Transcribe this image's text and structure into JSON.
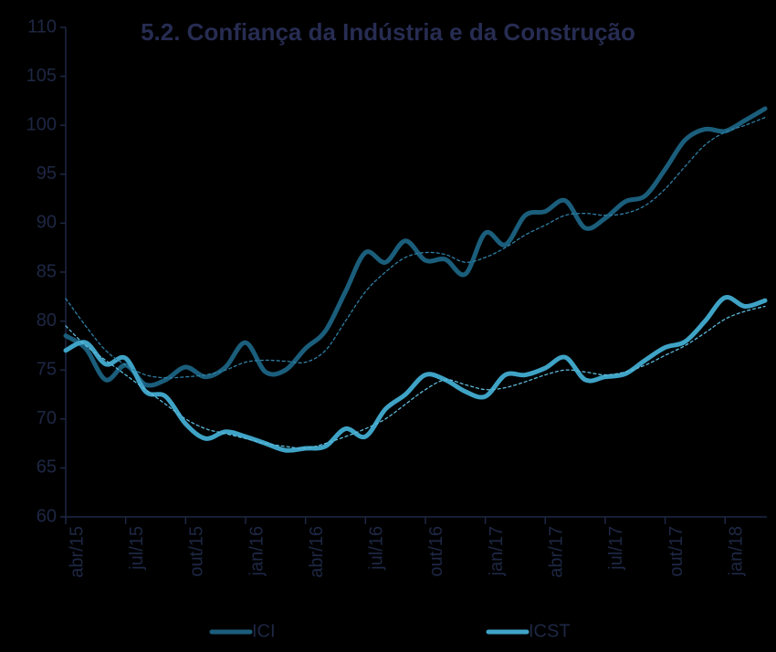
{
  "chart_data": {
    "type": "line",
    "title": "5.2. Confiança da Indústria e da Construção",
    "categories": [
      "abr/15",
      null,
      null,
      "jul/15",
      null,
      null,
      "out/15",
      null,
      null,
      "jan/16",
      null,
      null,
      "abr/16",
      null,
      null,
      "jul/16",
      null,
      null,
      "out/16",
      null,
      null,
      "jan/17",
      null,
      null,
      "abr/17",
      null,
      null,
      "jul/17",
      null,
      null,
      "out/17",
      null,
      null,
      "jan/18",
      null,
      null
    ],
    "series": [
      {
        "name": "ICI",
        "color": "#1b5e7c",
        "values": [
          78.5,
          77.2,
          74.0,
          75.5,
          73.5,
          74.0,
          75.3,
          74.3,
          75.3,
          77.8,
          74.8,
          75.0,
          77.2,
          79.0,
          83.0,
          87.0,
          86.0,
          88.2,
          86.2,
          86.3,
          84.8,
          89.0,
          87.8,
          90.8,
          91.2,
          92.3,
          89.5,
          90.5,
          92.2,
          92.8,
          95.5,
          98.5,
          99.6,
          99.4,
          100.5,
          101.7
        ]
      },
      {
        "name": "ICST",
        "color": "#3fa3c6",
        "values": [
          77.0,
          77.8,
          75.6,
          76.2,
          72.8,
          72.3,
          69.5,
          68.0,
          68.7,
          68.2,
          67.5,
          66.8,
          67.0,
          67.2,
          69.0,
          68.2,
          71.0,
          72.5,
          74.5,
          74.0,
          72.8,
          72.3,
          74.5,
          74.5,
          75.2,
          76.3,
          74.0,
          74.3,
          74.6,
          76.0,
          77.3,
          77.9,
          80.0,
          82.4,
          81.5,
          82.1
        ]
      },
      {
        "color": "#2f7ea3",
        "dash": true,
        "values": [
          82.3,
          79.5,
          77.0,
          75.5,
          74.5,
          74.2,
          74.3,
          74.5,
          75.0,
          75.8,
          76.0,
          75.9,
          75.8,
          77.0,
          80.0,
          83.0,
          85.0,
          86.5,
          87.0,
          86.8,
          86.0,
          86.5,
          87.5,
          88.8,
          89.8,
          90.8,
          91.0,
          90.8,
          91.0,
          91.8,
          93.5,
          95.8,
          98.0,
          99.3,
          100.0,
          100.8
        ]
      },
      {
        "color": "#5cb8d8",
        "dash": true,
        "values": [
          79.5,
          77.5,
          76.0,
          74.5,
          73.0,
          71.5,
          70.0,
          69.0,
          68.5,
          68.0,
          67.5,
          67.2,
          67.0,
          67.5,
          68.2,
          69.0,
          70.0,
          71.5,
          73.0,
          74.0,
          73.5,
          73.0,
          73.2,
          73.8,
          74.5,
          75.0,
          74.8,
          74.5,
          74.8,
          75.5,
          76.5,
          77.5,
          78.8,
          80.2,
          81.0,
          81.5
        ]
      }
    ],
    "ylim": [
      60,
      110
    ],
    "yticks": [
      60,
      65,
      70,
      75,
      80,
      85,
      90,
      95,
      100,
      105,
      110
    ],
    "grid": false
  }
}
